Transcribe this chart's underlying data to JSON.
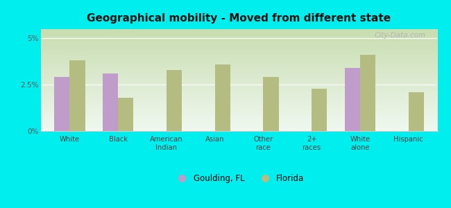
{
  "title": "Geographical mobility - Moved from different state",
  "categories": [
    "White",
    "Black",
    "American\nIndian",
    "Asian",
    "Other\nrace",
    "2+\nraces",
    "White\nalone",
    "Hispanic"
  ],
  "goulding": [
    2.9,
    3.1,
    null,
    null,
    null,
    null,
    3.4,
    null
  ],
  "florida": [
    3.8,
    1.8,
    3.3,
    3.6,
    2.9,
    2.3,
    4.1,
    2.1
  ],
  "goulding_color": "#bf9cc9",
  "florida_color": "#b5bc82",
  "background_color": "#00eeee",
  "ylim": [
    0,
    5.5
  ],
  "ytick_labels": [
    "0%",
    "2.5%",
    "5%"
  ],
  "legend_goulding": "Goulding, FL",
  "legend_florida": "Florida",
  "bar_width": 0.32,
  "watermark": "City-Data.com",
  "grad_top": "#c8ddb0",
  "grad_bottom": "#f0f8f0"
}
